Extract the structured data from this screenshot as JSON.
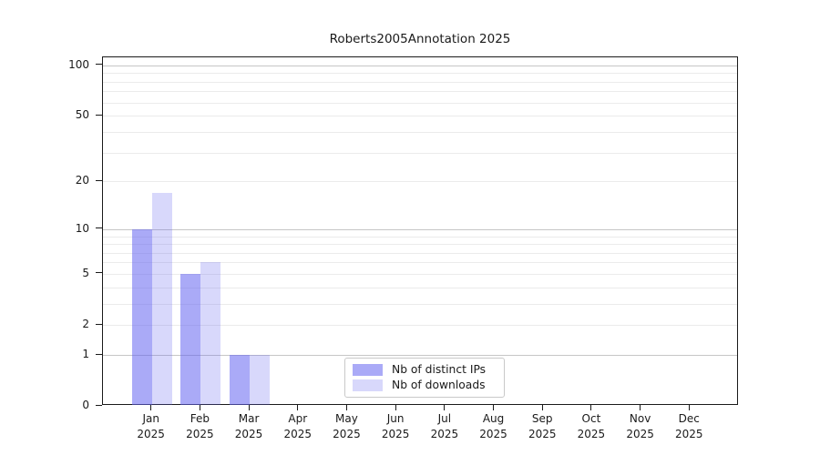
{
  "title": "Roberts2005Annotation 2025",
  "chart_data": {
    "type": "bar",
    "title": "Roberts2005Annotation 2025",
    "y_scale": "log10(1+value)",
    "year": "2025",
    "months": [
      "Jan",
      "Feb",
      "Mar",
      "Apr",
      "May",
      "Jun",
      "Jul",
      "Aug",
      "Sep",
      "Oct",
      "Nov",
      "Dec"
    ],
    "series": [
      {
        "name": "Nb of distinct IPs",
        "color": "rgba(100,100,240,0.55)",
        "values": [
          10,
          5,
          1,
          0,
          0,
          0,
          0,
          0,
          0,
          0,
          0,
          0
        ]
      },
      {
        "name": "Nb of downloads",
        "color": "rgba(100,100,240,0.25)",
        "values": [
          17,
          6,
          1,
          0,
          0,
          0,
          0,
          0,
          0,
          0,
          0,
          0
        ]
      }
    ],
    "y_ticks": [
      0,
      1,
      2,
      5,
      10,
      20,
      50,
      100
    ],
    "y_gridlines_major": [
      1,
      10,
      100
    ],
    "y_gridlines_minor": [
      2,
      3,
      4,
      5,
      6,
      7,
      8,
      9,
      20,
      30,
      40,
      50,
      60,
      70,
      80,
      90
    ],
    "ylim": [
      0,
      111
    ],
    "grid": "horizontal",
    "legend_position": "lower center"
  },
  "colors": {
    "bar_distinct_ips": "rgba(100,100,240,0.55)",
    "bar_downloads": "rgba(100,100,240,0.25)",
    "major_grid": "#c6c6c6",
    "minor_grid": "#ebebeb",
    "spine": "#1a1a1a",
    "background": "#ffffff"
  }
}
